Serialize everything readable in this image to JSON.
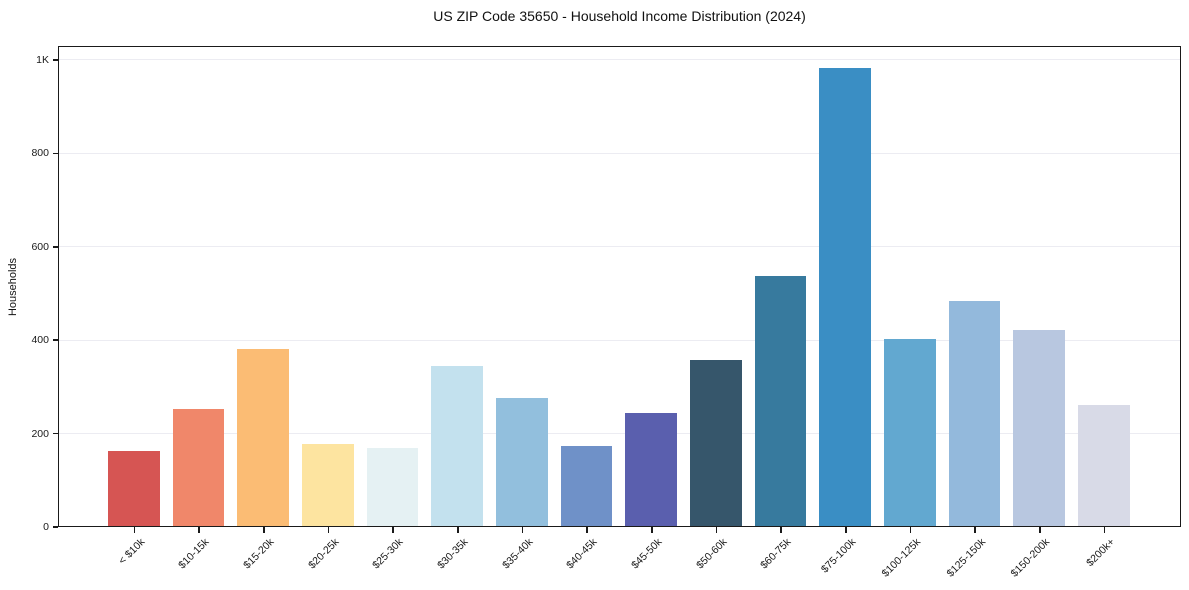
{
  "chart_data": {
    "type": "bar",
    "title": "US ZIP Code 35650 - Household Income Distribution (2024)",
    "xlabel": "",
    "ylabel": "Households",
    "categories": [
      "< $10k",
      "$10-15k",
      "$15-20k",
      "$20-25k",
      "$25-30k",
      "$30-35k",
      "$35-40k",
      "$40-45k",
      "$45-50k",
      "$50-60k",
      "$60-75k",
      "$75-100k",
      "$100-125k",
      "$125-150k",
      "$150-200k",
      "$200k+"
    ],
    "values": [
      160,
      250,
      378,
      175,
      166,
      342,
      274,
      172,
      242,
      356,
      535,
      980,
      400,
      482,
      420,
      260
    ],
    "bar_colors": [
      "#d65553",
      "#f0876a",
      "#fbbc74",
      "#fde4a0",
      "#e5f1f3",
      "#c3e1ee",
      "#92bfdd",
      "#6f91c8",
      "#5a5fae",
      "#36566b",
      "#377a9e",
      "#3a8ec4",
      "#62a8d0",
      "#93b9dc",
      "#b8c7e0",
      "#d8dae7"
    ],
    "ylim": [
      0,
      1030
    ],
    "yticks": [
      {
        "value": 0,
        "label": "0"
      },
      {
        "value": 200,
        "label": "200"
      },
      {
        "value": 400,
        "label": "400"
      },
      {
        "value": 600,
        "label": "600"
      },
      {
        "value": 800,
        "label": "800"
      },
      {
        "value": 1000,
        "label": "1K"
      }
    ],
    "gridlines": [
      200,
      400,
      600,
      800,
      1000
    ],
    "grid_on": true,
    "legend_position": "none",
    "grid_color": "#ececf2",
    "axis_color": "#1a1a1a",
    "plot_background": "#ffffff"
  }
}
